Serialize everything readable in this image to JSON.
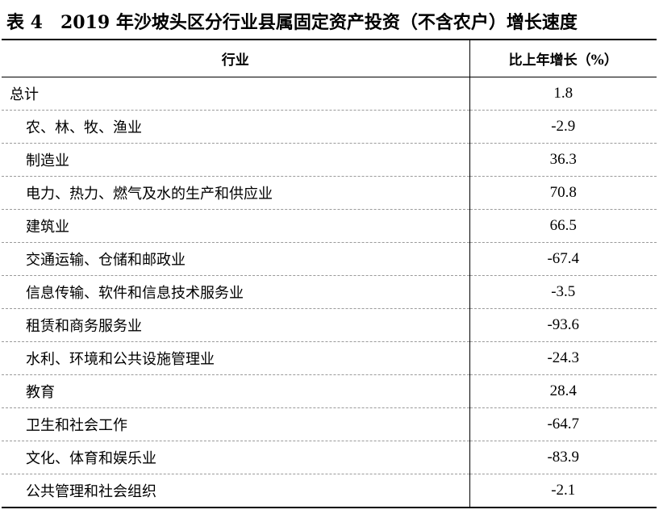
{
  "title": {
    "label": "表 4",
    "text": "2019 年沙坡头区分行业县属固定资产投资（不含农户）增长速度"
  },
  "table": {
    "headers": [
      "行业",
      "比上年增长（%）"
    ],
    "rows": [
      {
        "name": "总计",
        "value": "1.8"
      },
      {
        "name": "农、林、牧、渔业",
        "value": "-2.9"
      },
      {
        "name": "制造业",
        "value": "36.3"
      },
      {
        "name": "电力、热力、燃气及水的生产和供应业",
        "value": "70.8"
      },
      {
        "name": "建筑业",
        "value": "66.5"
      },
      {
        "name": "交通运输、仓储和邮政业",
        "value": "-67.4"
      },
      {
        "name": "信息传输、软件和信息技术服务业",
        "value": "-3.5"
      },
      {
        "name": "租赁和商务服务业",
        "value": "-93.6"
      },
      {
        "name": "水利、环境和公共设施管理业",
        "value": "-24.3"
      },
      {
        "name": "教育",
        "value": "28.4"
      },
      {
        "name": "卫生和社会工作",
        "value": "-64.7"
      },
      {
        "name": "文化、体育和娱乐业",
        "value": "-83.9"
      },
      {
        "name": "公共管理和社会组织",
        "value": "-2.1"
      }
    ]
  }
}
